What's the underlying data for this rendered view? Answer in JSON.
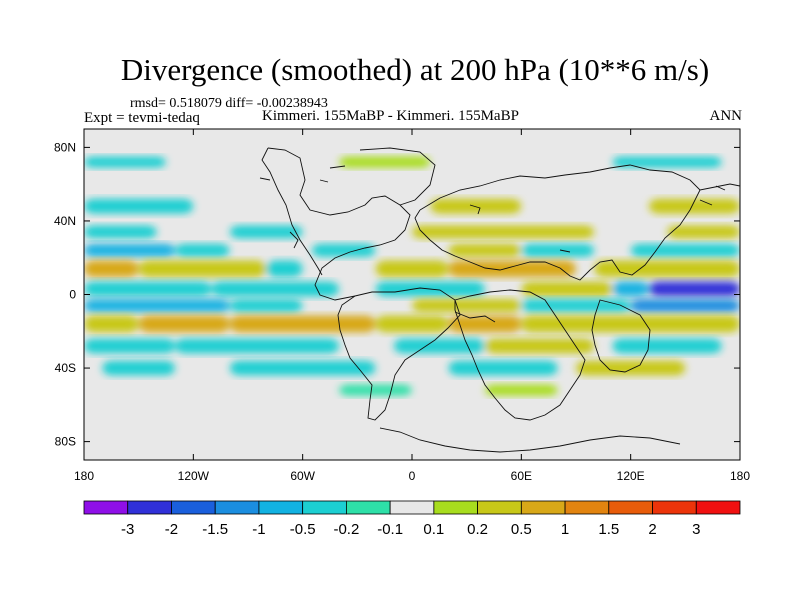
{
  "chart_data": {
    "type": "heatmap",
    "title": "Divergence (smoothed) at 200 hPa (10**6 m/s)",
    "stats": "rmsd= 0.518079 diff= -0.00238943",
    "expt": "Expt = tevmi-tedaq",
    "cases": "Kimmeri. 155MaBP - Kimmeri. 155MaBP",
    "period": "ANN",
    "x_ticks": [
      "180",
      "120W",
      "60W",
      "0",
      "60E",
      "120E",
      "180"
    ],
    "x_values": [
      -180,
      -120,
      -60,
      0,
      60,
      120,
      180
    ],
    "y_ticks": [
      "80N",
      "40N",
      "0",
      "40S",
      "80S"
    ],
    "y_values": [
      80,
      40,
      0,
      -40,
      -80
    ],
    "xlim": [
      -180,
      180
    ],
    "ylim": [
      -90,
      90
    ],
    "colorbar_labels": [
      "-3",
      "-2",
      "-1.5",
      "-1",
      "-0.5",
      "-0.2",
      "-0.1",
      "0.1",
      "0.2",
      "0.5",
      "1",
      "1.5",
      "2",
      "3"
    ],
    "colorbar_levels": [
      -3,
      -2,
      -1.5,
      -1,
      -0.5,
      -0.2,
      -0.1,
      0.1,
      0.2,
      0.5,
      1,
      1.5,
      2,
      3
    ],
    "colorbar_colors": [
      "#8f0fe8",
      "#3030d8",
      "#1a5fdc",
      "#1b8ee0",
      "#12b2e2",
      "#1ccfd2",
      "#2ee0a8",
      "#e8e8e8",
      "#a8dd1e",
      "#c8c818",
      "#d8a818",
      "#e28410",
      "#e85c0a",
      "#ec340a",
      "#f01010"
    ],
    "bands": [
      {
        "lat": 72,
        "width": 6,
        "segments": [
          [
            -180,
            -135,
            -0.3
          ],
          [
            -40,
            10,
            0.15
          ],
          [
            110,
            170,
            -0.25
          ]
        ]
      },
      {
        "lat": 48,
        "width": 8,
        "segments": [
          [
            -180,
            -120,
            -0.3
          ],
          [
            10,
            60,
            0.35
          ],
          [
            130,
            180,
            0.3
          ]
        ]
      },
      {
        "lat": 34,
        "width": 7,
        "segments": [
          [
            -180,
            -140,
            -0.4
          ],
          [
            -100,
            -60,
            -0.3
          ],
          [
            0,
            100,
            0.4
          ],
          [
            140,
            180,
            0.25
          ]
        ]
      },
      {
        "lat": 24,
        "width": 7,
        "segments": [
          [
            -180,
            -130,
            -0.9
          ],
          [
            -130,
            -100,
            -0.3
          ],
          [
            -55,
            -20,
            -0.3
          ],
          [
            20,
            60,
            0.25
          ],
          [
            60,
            100,
            -0.3
          ],
          [
            120,
            180,
            -0.3
          ]
        ]
      },
      {
        "lat": 14,
        "width": 9,
        "segments": [
          [
            -180,
            -150,
            0.9
          ],
          [
            -150,
            -80,
            0.35
          ],
          [
            -80,
            -60,
            -0.3
          ],
          [
            -20,
            20,
            0.3
          ],
          [
            20,
            90,
            0.9
          ],
          [
            100,
            180,
            0.35
          ]
        ]
      },
      {
        "lat": 3,
        "width": 8,
        "segments": [
          [
            -180,
            -110,
            -0.4
          ],
          [
            -110,
            -40,
            -0.3
          ],
          [
            -20,
            40,
            -0.3
          ],
          [
            60,
            110,
            0.3
          ],
          [
            110,
            130,
            -0.6
          ],
          [
            130,
            180,
            -2.2
          ]
        ]
      },
      {
        "lat": -6,
        "width": 7,
        "segments": [
          [
            -180,
            -100,
            -0.6
          ],
          [
            -100,
            -60,
            -0.3
          ],
          [
            0,
            60,
            0.35
          ],
          [
            60,
            120,
            -0.3
          ],
          [
            120,
            180,
            -1.2
          ]
        ]
      },
      {
        "lat": -16,
        "width": 9,
        "segments": [
          [
            -180,
            -150,
            0.35
          ],
          [
            -150,
            -100,
            0.9
          ],
          [
            -100,
            -20,
            0.7
          ],
          [
            -20,
            20,
            0.4
          ],
          [
            20,
            60,
            0.9
          ],
          [
            60,
            180,
            0.3
          ]
        ]
      },
      {
        "lat": -28,
        "width": 8,
        "segments": [
          [
            -180,
            -130,
            -0.5
          ],
          [
            -130,
            -40,
            -0.3
          ],
          [
            -10,
            40,
            -0.3
          ],
          [
            40,
            100,
            0.25
          ],
          [
            110,
            170,
            -0.3
          ]
        ]
      },
      {
        "lat": -40,
        "width": 8,
        "segments": [
          [
            -170,
            -130,
            -0.3
          ],
          [
            -100,
            -20,
            -0.25
          ],
          [
            20,
            80,
            -0.3
          ],
          [
            90,
            150,
            0.25
          ]
        ]
      },
      {
        "lat": -52,
        "width": 6,
        "segments": [
          [
            -40,
            0,
            -0.15
          ],
          [
            40,
            80,
            0.15
          ]
        ]
      }
    ]
  }
}
